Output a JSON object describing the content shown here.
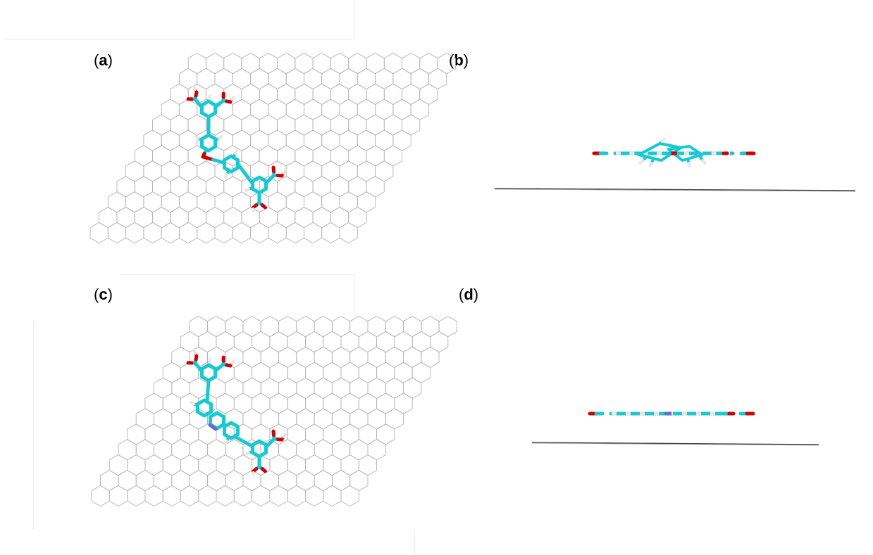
{
  "panels": [
    {
      "id": "a",
      "label_open": "(",
      "label_letter": "a",
      "label_close": ")",
      "view": "top",
      "linker": "ether"
    },
    {
      "id": "b",
      "label_open": "(",
      "label_letter": "b",
      "label_close": ")",
      "view": "side",
      "linker": "ether"
    },
    {
      "id": "c",
      "label_open": "(",
      "label_letter": "c",
      "label_close": ")",
      "view": "top",
      "linker": "fused-nitrogen"
    },
    {
      "id": "d",
      "label_open": "(",
      "label_letter": "d",
      "label_close": ")",
      "view": "side",
      "linker": "fused-nitrogen"
    }
  ],
  "colors": {
    "carbon": "#19c8d2",
    "carbon_dark": "#12a9b2",
    "oxygen": "#d10000",
    "hydrogen": "#e6e6e6",
    "nitrogen": "#6a6acc",
    "lattice": "#b4b4b4",
    "substrate_edge": "#444444"
  }
}
